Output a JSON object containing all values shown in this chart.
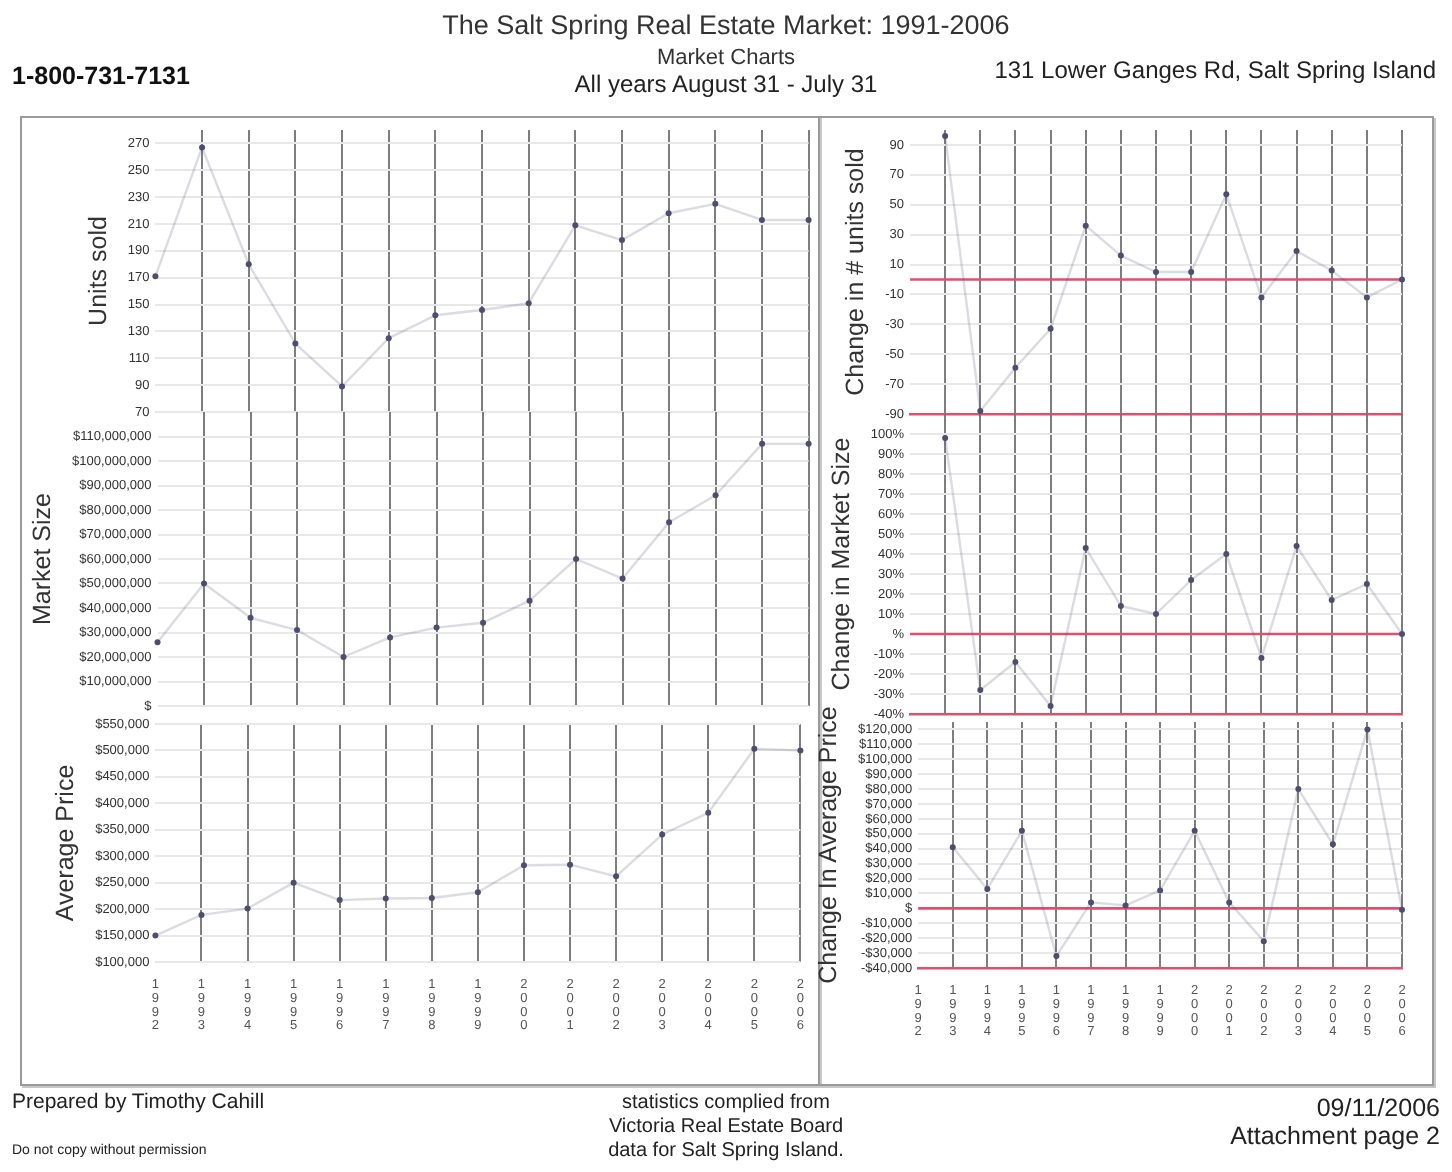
{
  "chart_data": [
    {
      "type": "other",
      "title": "The Salt Spring Real Estate Market: 1991-2006",
      "subtitle": "Market Charts",
      "annotations": [
        "1-800-731-7131",
        "All years August 31 - July 31",
        "131 Lower Ganges Rd, Salt Spring Island",
        "Prepared by Timothy Cahill",
        "Do not copy without permission",
        "statistics complied from",
        "Victoria Real Estate Board",
        "data for Salt Spring Island.",
        "09/11/2006",
        "Attachment page 2"
      ]
    },
    {
      "type": "line",
      "ylabel": "Units sold",
      "categories": [
        "1992",
        "1993",
        "1994",
        "1995",
        "1996",
        "1997",
        "1998",
        "1999",
        "2000",
        "2001",
        "2002",
        "2003",
        "2004",
        "2005",
        "2006"
      ],
      "series": [
        {
          "color": "#4d4d70",
          "values": [
            171,
            267,
            180,
            121,
            89,
            125,
            142,
            146,
            151,
            209,
            198,
            218,
            225,
            213,
            213
          ]
        }
      ],
      "ylim": [
        70,
        280
      ],
      "yticks": [
        70,
        90,
        110,
        130,
        150,
        170,
        190,
        210,
        230,
        250,
        270
      ],
      "grid": true,
      "marker": "circle",
      "tick_labels": "y"
    },
    {
      "type": "line",
      "ylabel": "Change in # units sold",
      "categories": [
        "1992",
        "1993",
        "1994",
        "1995",
        "1996",
        "1997",
        "1998",
        "1999",
        "2000",
        "2001",
        "2002",
        "2003",
        "2004",
        "2005",
        "2006"
      ],
      "series": [
        {
          "color": "#4d4d70",
          "values": [
            null,
            96,
            -88,
            -59,
            -33,
            36,
            16,
            5,
            5,
            57,
            -12,
            19,
            6,
            -12,
            0
          ]
        }
      ],
      "ylim": [
        -90,
        100
      ],
      "yticks": [
        -90,
        -70,
        -50,
        -30,
        -10,
        10,
        30,
        50,
        70,
        90
      ],
      "grid": true,
      "marker": "circle",
      "tick_labels": "y",
      "ref_lines": [
        {
          "axis": "y",
          "value": 0,
          "color": "#e0506e"
        }
      ]
    },
    {
      "type": "line",
      "ylabel": "Market Size",
      "categories": [
        "1992",
        "1993",
        "1994",
        "1995",
        "1996",
        "1997",
        "1998",
        "1999",
        "2000",
        "2001",
        "2002",
        "2003",
        "2004",
        "2005",
        "2006"
      ],
      "series": [
        {
          "color": "#4d4d70",
          "values": [
            26000000,
            50000000,
            36000000,
            31000000,
            20000000,
            28000000,
            32000000,
            34000000,
            43000000,
            60000000,
            52000000,
            75000000,
            86000000,
            107000000,
            107000000
          ]
        }
      ],
      "ylim": [
        0,
        120000000
      ],
      "yticks": [
        {
          "value": 0,
          "label": "$"
        },
        {
          "value": 10000000,
          "label": "$10,000,000"
        },
        {
          "value": 20000000,
          "label": "$20,000,000"
        },
        {
          "value": 30000000,
          "label": "$30,000,000"
        },
        {
          "value": 40000000,
          "label": "$40,000,000"
        },
        {
          "value": 50000000,
          "label": "$50,000,000"
        },
        {
          "value": 60000000,
          "label": "$60,000,000"
        },
        {
          "value": 70000000,
          "label": "$70,000,000"
        },
        {
          "value": 80000000,
          "label": "$80,000,000"
        },
        {
          "value": 90000000,
          "label": "$90,000,000"
        },
        {
          "value": 100000000,
          "label": "$100,000,000"
        },
        {
          "value": 110000000,
          "label": "$110,000,000"
        }
      ],
      "grid": true,
      "marker": "circle",
      "tick_labels": "y"
    },
    {
      "type": "line",
      "ylabel": "Change in Market Size",
      "categories": [
        "1992",
        "1993",
        "1994",
        "1995",
        "1996",
        "1997",
        "1998",
        "1999",
        "2000",
        "2001",
        "2002",
        "2003",
        "2004",
        "2005",
        "2006"
      ],
      "series": [
        {
          "color": "#4d4d70",
          "values": [
            null,
            98,
            -28,
            -14,
            -36,
            43,
            14,
            10,
            27,
            40,
            -12,
            44,
            17,
            25,
            0
          ]
        }
      ],
      "ylim": [
        -40,
        110
      ],
      "yticks": [
        {
          "value": -40,
          "label": "-40%"
        },
        {
          "value": -30,
          "label": "-30%"
        },
        {
          "value": -20,
          "label": "-20%"
        },
        {
          "value": -10,
          "label": "-10%"
        },
        {
          "value": 0,
          "label": "%"
        },
        {
          "value": 10,
          "label": "10%"
        },
        {
          "value": 20,
          "label": "20%"
        },
        {
          "value": 30,
          "label": "30%"
        },
        {
          "value": 40,
          "label": "40%"
        },
        {
          "value": 50,
          "label": "50%"
        },
        {
          "value": 60,
          "label": "60%"
        },
        {
          "value": 70,
          "label": "70%"
        },
        {
          "value": 80,
          "label": "80%"
        },
        {
          "value": 90,
          "label": "90%"
        },
        {
          "value": 100,
          "label": "100%"
        }
      ],
      "grid": true,
      "marker": "circle",
      "tick_labels": "y",
      "ref_lines": [
        {
          "axis": "y",
          "value": 0,
          "color": "#e0506e"
        }
      ]
    },
    {
      "type": "line",
      "ylabel": "Average Price",
      "categories": [
        "1992",
        "1993",
        "1994",
        "1995",
        "1996",
        "1997",
        "1998",
        "1999",
        "2000",
        "2001",
        "2002",
        "2003",
        "2004",
        "2005",
        "2006"
      ],
      "series": [
        {
          "color": "#4d4d70",
          "values": [
            150000,
            189000,
            201000,
            250000,
            217000,
            220000,
            221000,
            232000,
            283000,
            284000,
            262000,
            341000,
            382000,
            503000,
            500000
          ]
        }
      ],
      "ylim": [
        100000,
        550000
      ],
      "yticks": [
        {
          "value": 100000,
          "label": "$100,000"
        },
        {
          "value": 150000,
          "label": "$150,000"
        },
        {
          "value": 200000,
          "label": "$200,000"
        },
        {
          "value": 250000,
          "label": "$250,000"
        },
        {
          "value": 300000,
          "label": "$300,000"
        },
        {
          "value": 350000,
          "label": "$350,000"
        },
        {
          "value": 400000,
          "label": "$400,000"
        },
        {
          "value": 450000,
          "label": "$450,000"
        },
        {
          "value": 500000,
          "label": "$500,000"
        },
        {
          "value": 550000,
          "label": "$550,000"
        }
      ],
      "grid": true,
      "marker": "circle"
    },
    {
      "type": "line",
      "ylabel": "Change In Average Price",
      "categories": [
        "1992",
        "1993",
        "1994",
        "1995",
        "1996",
        "1997",
        "1998",
        "1999",
        "2000",
        "2001",
        "2002",
        "2003",
        "2004",
        "2005",
        "2006"
      ],
      "series": [
        {
          "color": "#4d4d70",
          "values": [
            null,
            41000,
            13000,
            52000,
            -32000,
            4000,
            2000,
            12000,
            52000,
            4000,
            -22000,
            80000,
            43000,
            120000,
            -1000
          ]
        }
      ],
      "ylim": [
        -40000,
        125000
      ],
      "yticks": [
        {
          "value": -40000,
          "label": "-$40,000"
        },
        {
          "value": -30000,
          "label": "-$30,000"
        },
        {
          "value": -20000,
          "label": "-$20,000"
        },
        {
          "value": -10000,
          "label": "-$10,000"
        },
        {
          "value": 0,
          "label": "$"
        },
        {
          "value": 10000,
          "label": "$10,000"
        },
        {
          "value": 20000,
          "label": "$20,000"
        },
        {
          "value": 30000,
          "label": "$30,000"
        },
        {
          "value": 40000,
          "label": "$40,000"
        },
        {
          "value": 50000,
          "label": "$50,000"
        },
        {
          "value": 60000,
          "label": "$60,000"
        },
        {
          "value": 70000,
          "label": "$70,000"
        },
        {
          "value": 80000,
          "label": "$80,000"
        },
        {
          "value": 90000,
          "label": "$90,000"
        },
        {
          "value": 100000,
          "label": "$100,000"
        },
        {
          "value": 110000,
          "label": "$110,000"
        },
        {
          "value": 120000,
          "label": "$120,000"
        }
      ],
      "grid": true,
      "marker": "circle",
      "ref_lines": [
        {
          "axis": "y",
          "value": 0,
          "color": "#e0506e"
        }
      ]
    }
  ]
}
